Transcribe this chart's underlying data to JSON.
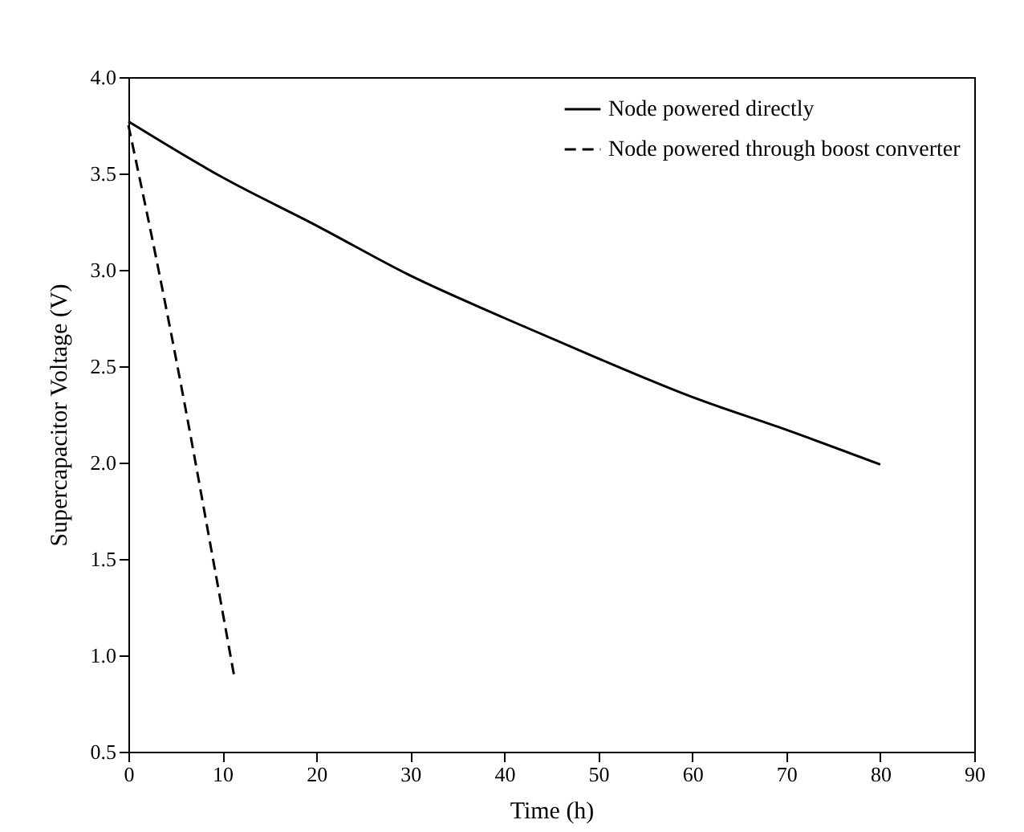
{
  "chart_data": {
    "type": "line",
    "xlabel": "Time (h)",
    "ylabel": "Supercapacitor Voltage (V)",
    "xlim": [
      0,
      90
    ],
    "xticks": [
      0,
      10,
      20,
      30,
      40,
      50,
      60,
      70,
      80,
      90
    ],
    "ylim": [
      0.5,
      4.0
    ],
    "yticks": [
      {
        "value": 0.5,
        "label": "0.5"
      },
      {
        "value": 1.0,
        "label": "1.0"
      },
      {
        "value": 1.5,
        "label": "1.5"
      },
      {
        "value": 2.0,
        "label": "2.0"
      },
      {
        "value": 2.5,
        "label": "2.5"
      },
      {
        "value": 3.0,
        "label": "3.0"
      },
      {
        "value": 3.5,
        "label": "3.5"
      },
      {
        "value": 4.0,
        "label": "4.0"
      }
    ],
    "grid": false,
    "legend": "top right",
    "marker": "none",
    "series": [
      {
        "name": "Node powered directly",
        "color": "#000000",
        "line_style": "solid",
        "x": [
          0,
          10,
          20,
          30,
          40,
          50,
          60,
          70,
          80
        ],
        "values": [
          3.77,
          3.48,
          3.23,
          2.97,
          2.75,
          2.54,
          2.34,
          2.17,
          1.99
        ]
      },
      {
        "name": "Node powered through boost converter",
        "color": "#000000",
        "line_style": "dashed",
        "x": [
          0,
          3,
          6,
          9,
          11.3
        ],
        "values": [
          3.75,
          3.05,
          2.3,
          1.5,
          0.88
        ]
      }
    ]
  }
}
